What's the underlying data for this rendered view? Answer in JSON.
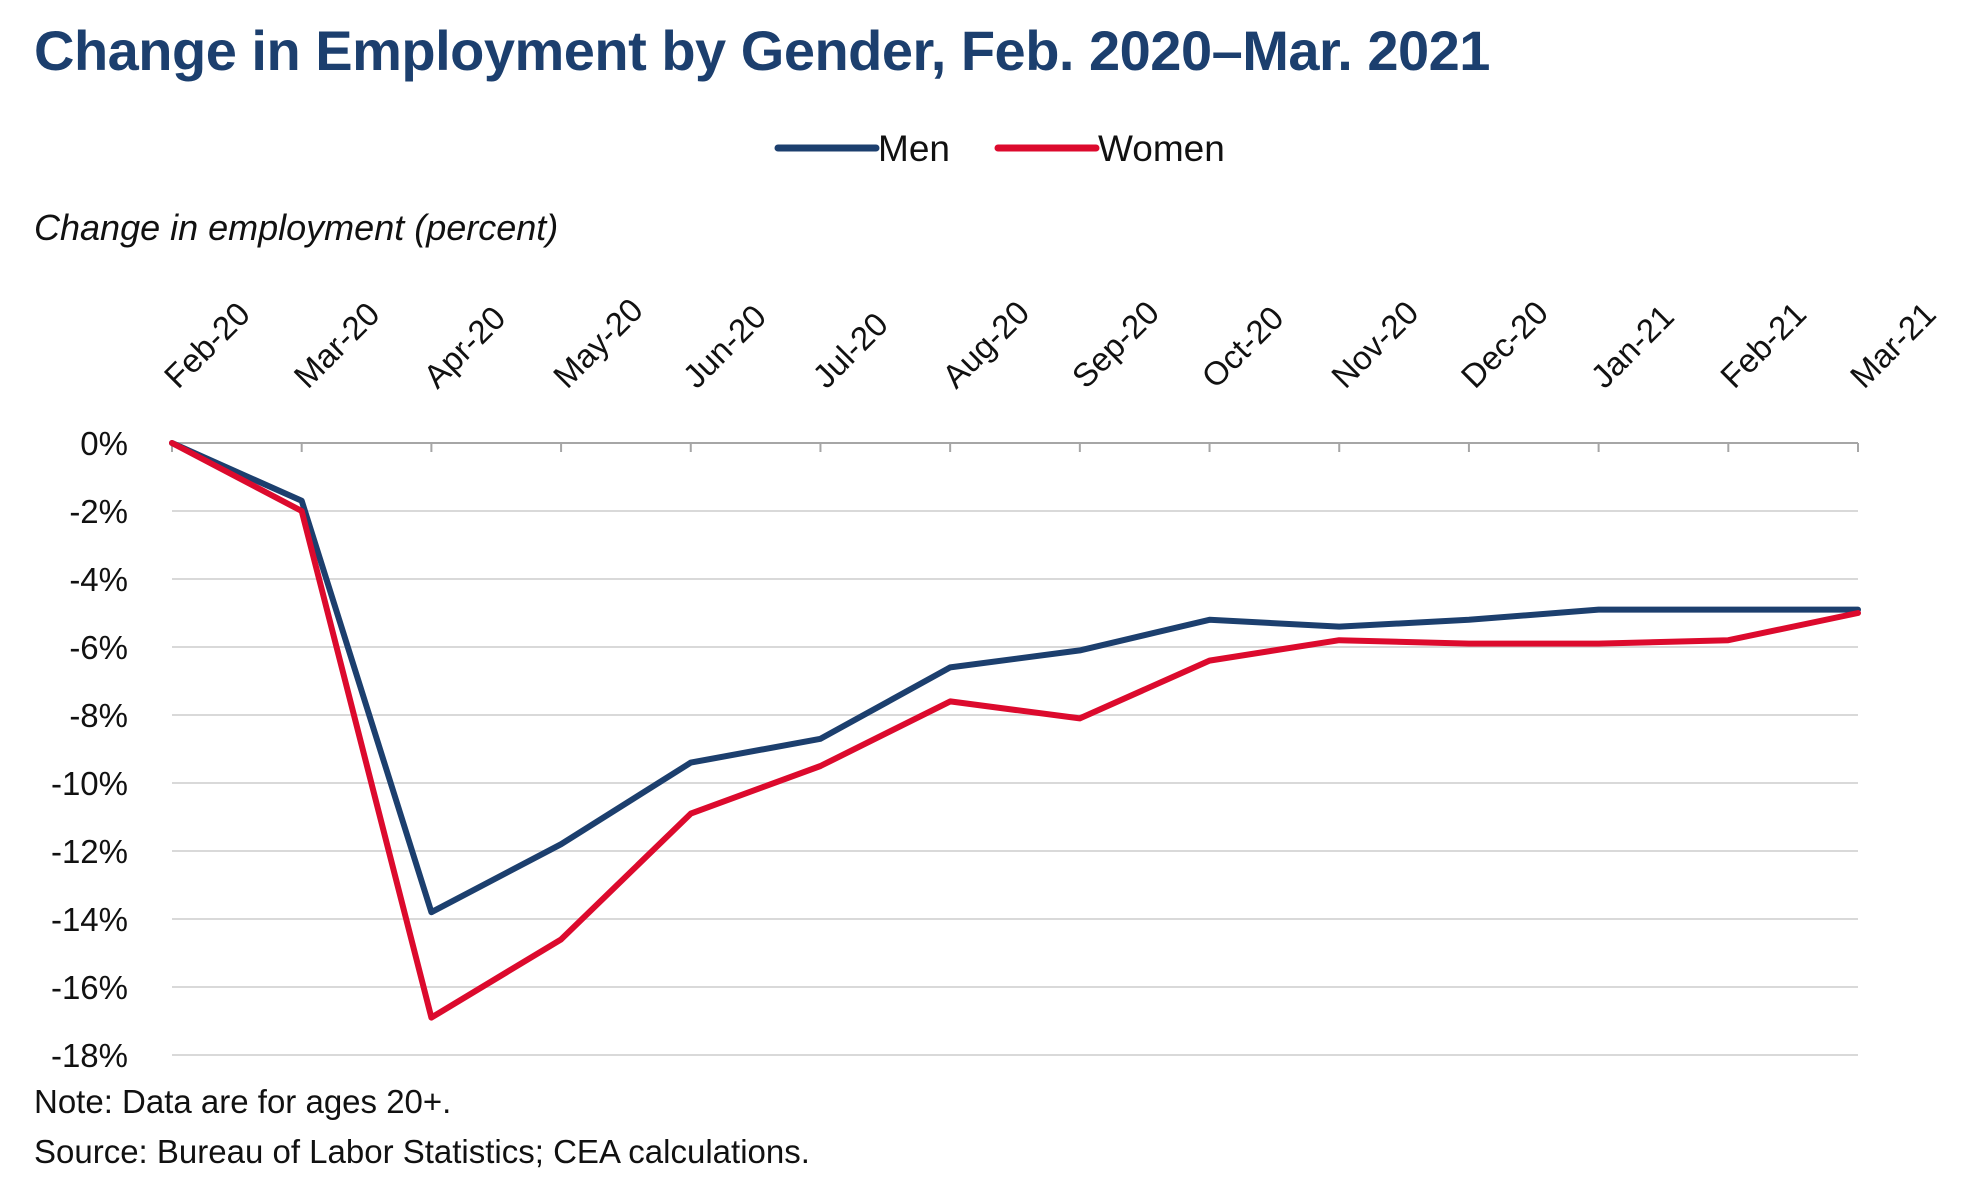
{
  "chart_data": {
    "type": "line",
    "title": "Change in Employment by Gender, Feb. 2020–Mar. 2021",
    "ylabel": "Change in employment (percent)",
    "xlabel": "",
    "categories": [
      "Feb-20",
      "Mar-20",
      "Apr-20",
      "May-20",
      "Jun-20",
      "Jul-20",
      "Aug-20",
      "Sep-20",
      "Oct-20",
      "Nov-20",
      "Dec-20",
      "Jan-21",
      "Feb-21",
      "Mar-21"
    ],
    "series": [
      {
        "name": "Men",
        "color": "#1c3f6e",
        "values": [
          0,
          -1.7,
          -13.8,
          -11.8,
          -9.4,
          -8.7,
          -6.6,
          -6.1,
          -5.2,
          -5.4,
          -5.2,
          -4.9,
          -4.9,
          -4.9
        ]
      },
      {
        "name": "Women",
        "color": "#dc0a2d",
        "values": [
          0,
          -2.0,
          -16.9,
          -14.6,
          -10.9,
          -9.5,
          -7.6,
          -8.1,
          -6.4,
          -5.8,
          -5.9,
          -5.9,
          -5.8,
          -5.0
        ]
      }
    ],
    "ylim": [
      -18,
      0
    ],
    "yticks": [
      0,
      -2,
      -4,
      -6,
      -8,
      -10,
      -12,
      -14,
      -16,
      -18
    ],
    "ytick_format": "percent",
    "x_axis_position": "top",
    "grid": true,
    "legend_position": "top-center"
  },
  "notes": {
    "note": "Note: Data are for ages 20+.",
    "source": "Source: Bureau of Labor Statistics; CEA calculations."
  }
}
